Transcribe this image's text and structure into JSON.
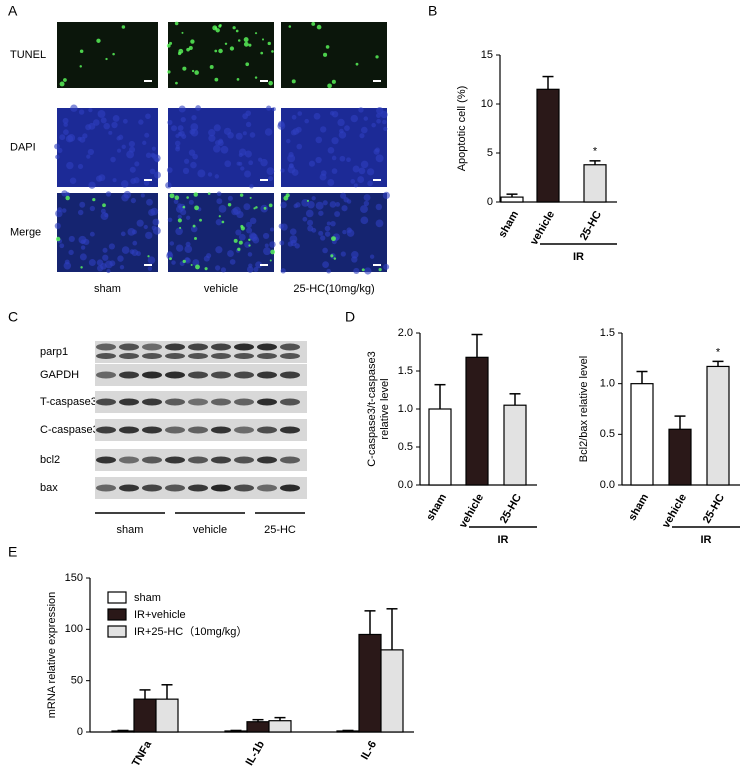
{
  "figure": {
    "panels": [
      "A",
      "B",
      "C",
      "D",
      "E"
    ],
    "image_rows": [
      "TUNEL",
      "DAPI",
      "Merge"
    ],
    "image_columns": [
      "sham",
      "vehicle",
      "25-HC(10mg/kg)"
    ],
    "blot_rows": [
      "parp1",
      "GAPDH",
      "T-caspase3",
      "C-caspase3",
      "bcl2",
      "bax"
    ],
    "blot_groups": [
      "sham",
      "vehicle",
      "25-HC"
    ]
  },
  "chart_data": [
    {
      "type": "bar",
      "ylabel": "Apoptotic cell (%)",
      "categories": [
        "sham",
        "vehicle",
        "25-HC"
      ],
      "values": [
        0.5,
        11.5,
        3.8
      ],
      "errors": [
        0.3,
        1.3,
        0.4
      ],
      "colors": [
        "#ffffff",
        "#2a1818",
        "#e2e2e2"
      ],
      "ylim": [
        0,
        15
      ],
      "yticks": [
        0,
        5,
        10,
        15
      ],
      "annotation": {
        "text": "*",
        "category": "25-HC"
      },
      "group_label": {
        "text": "IR",
        "categories": [
          "vehicle",
          "25-HC"
        ]
      }
    },
    {
      "type": "bar",
      "ylabel": [
        "C-caspase3/t-caspase3",
        "relative level"
      ],
      "categories": [
        "sham",
        "vehicle",
        "25-HC"
      ],
      "values": [
        1.0,
        1.68,
        1.05
      ],
      "errors": [
        0.32,
        0.3,
        0.15
      ],
      "colors": [
        "#ffffff",
        "#2a1818",
        "#e2e2e2"
      ],
      "ylim": [
        0,
        2
      ],
      "yticks": [
        {
          "value": 0,
          "label": "0.0"
        },
        0.5,
        {
          "value": 1,
          "label": "1.0"
        },
        1.5,
        {
          "value": 2,
          "label": "2.0"
        }
      ],
      "group_label": {
        "text": "IR",
        "categories": [
          "vehicle",
          "25-HC"
        ]
      }
    },
    {
      "type": "bar",
      "ylabel": "Bcl2/bax relative level",
      "categories": [
        "sham",
        "vehicle",
        "25-HC"
      ],
      "values": [
        1.0,
        0.55,
        1.17
      ],
      "errors": [
        0.12,
        0.13,
        0.05
      ],
      "colors": [
        "#ffffff",
        "#2a1818",
        "#e2e2e2"
      ],
      "ylim": [
        0,
        1.5
      ],
      "yticks": [
        {
          "value": 0,
          "label": "0.0"
        },
        0.5,
        {
          "value": 1,
          "label": "1.0"
        },
        1.5
      ],
      "annotation": {
        "text": "*",
        "category": "25-HC"
      },
      "group_label": {
        "text": "IR",
        "categories": [
          "vehicle",
          "25-HC"
        ]
      }
    },
    {
      "type": "bar",
      "ylabel": "mRNA relative expression",
      "categories": [
        "TNFa",
        "IL-1b",
        "IL-6"
      ],
      "series": [
        {
          "name": "sham",
          "color": "#ffffff",
          "values": [
            1,
            1,
            1
          ],
          "errors": [
            0.5,
            0.5,
            0.5
          ]
        },
        {
          "name": "IR+vehicle",
          "color": "#2a1818",
          "values": [
            32,
            10,
            95
          ],
          "errors": [
            9,
            2,
            23
          ]
        },
        {
          "name": "IR+25-HC（10mg/kg）",
          "color": "#e2e2e2",
          "values": [
            32,
            11,
            80
          ],
          "errors": [
            14,
            3,
            40
          ]
        }
      ],
      "ylim": [
        0,
        150
      ],
      "yticks": [
        0,
        50,
        100,
        150
      ],
      "legend": "top-left"
    }
  ]
}
